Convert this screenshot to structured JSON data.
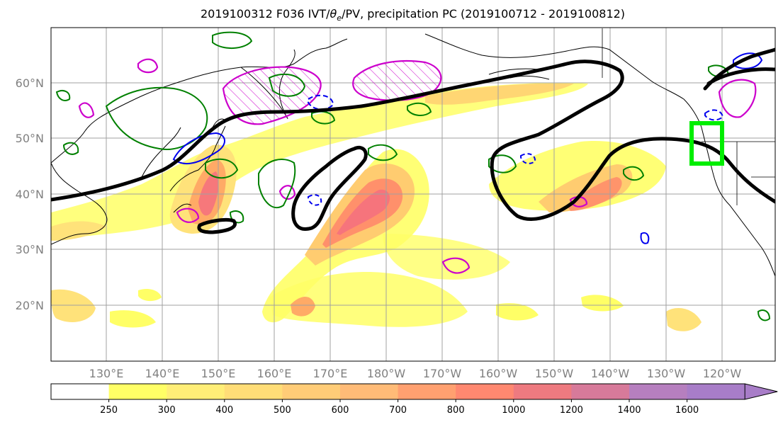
{
  "title_parts": {
    "prefix": "2019100312 F036 IVT/",
    "theta": "θ",
    "sub": "e",
    "suffix": "/PV, precipitation PC (2019100712 - 2019100812)"
  },
  "map": {
    "lon_ticks": [
      "130°E",
      "140°E",
      "150°E",
      "160°E",
      "170°E",
      "180°W",
      "170°W",
      "160°W",
      "150°W",
      "140°W",
      "130°W",
      "120°W"
    ],
    "lat_ticks": [
      "60°N",
      "50°N",
      "40°N",
      "30°N",
      "20°N"
    ],
    "region_box_color": "#00ee00",
    "ivt_colors": [
      "#ffff66",
      "#ffe27a",
      "#ffcc70",
      "#ffaa66",
      "#ff8a6a",
      "#f4707f",
      "#d9799c",
      "#b47fbf",
      "#a87dc8"
    ]
  },
  "colorbar": {
    "levels": [
      "250",
      "300",
      "400",
      "500",
      "600",
      "700",
      "800",
      "1000",
      "1200",
      "1400",
      "1600"
    ],
    "colors": [
      "#ffffff",
      "#ffff66",
      "#ffee77",
      "#ffdd77",
      "#ffcc77",
      "#ffbb77",
      "#ffa070",
      "#ff8870",
      "#ee7a80",
      "#d77a9a",
      "#b67fbf",
      "#a87dc8"
    ]
  }
}
